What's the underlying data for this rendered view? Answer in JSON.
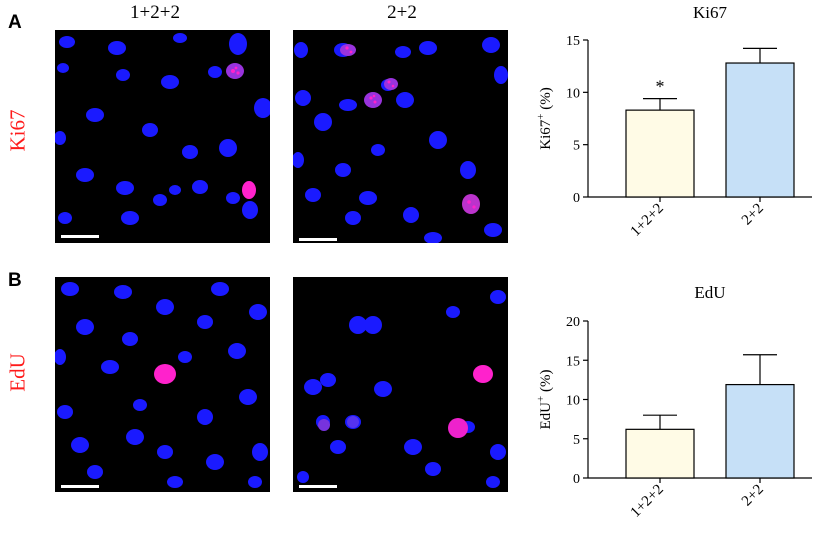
{
  "panels": {
    "A": {
      "letter": "A",
      "row_label": "Ki67",
      "col_titles": [
        "1+2+2",
        "2+2"
      ]
    },
    "B": {
      "letter": "B",
      "row_label": "EdU"
    }
  },
  "colors": {
    "nucleus_blue": "#1a1aff",
    "marker_magenta": "#ff22cc",
    "row_label_red": "#ff1a1a",
    "bar_yellow": "#fffbe6",
    "bar_blue": "#c6e0f7"
  },
  "chart_data": [
    {
      "type": "bar",
      "title": "Ki67",
      "ylabel_main": "Ki67",
      "ylabel_sup": "+",
      "ylabel_unit": " (%)",
      "categories": [
        "1+2+2",
        "2+2"
      ],
      "values": [
        8.3,
        12.8
      ],
      "errors": [
        1.1,
        1.4
      ],
      "annotations": [
        "*",
        ""
      ],
      "ylim": [
        0,
        15
      ],
      "yticks": [
        0,
        5,
        10,
        15
      ],
      "bar_colors": [
        "#fffbe6",
        "#c6e0f7"
      ],
      "grid": false
    },
    {
      "type": "bar",
      "title": "EdU",
      "ylabel_main": "EdU",
      "ylabel_sup": "+",
      "ylabel_unit": " (%)",
      "categories": [
        "1+2+2",
        "2+2"
      ],
      "values": [
        6.2,
        11.9
      ],
      "errors": [
        1.8,
        3.8
      ],
      "annotations": [
        "",
        ""
      ],
      "ylim": [
        0,
        20
      ],
      "yticks": [
        0,
        5,
        10,
        15,
        20
      ],
      "bar_colors": [
        "#fffbe6",
        "#c6e0f7"
      ],
      "grid": false
    }
  ]
}
